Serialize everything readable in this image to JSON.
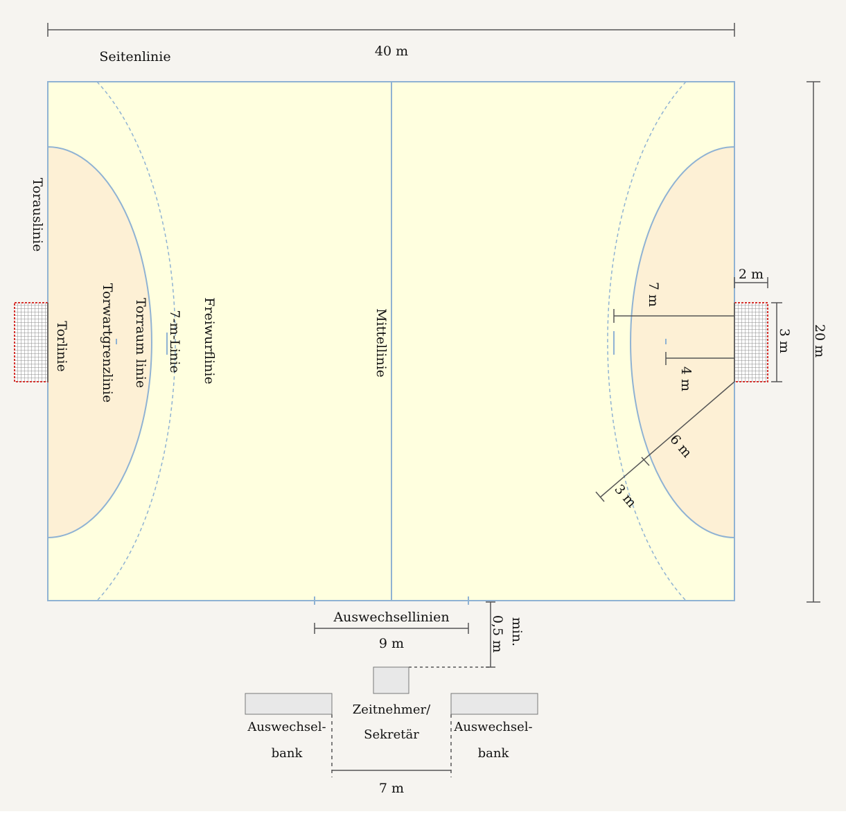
{
  "colors": {
    "background": "#f6f4f0",
    "court": "#ffffdf",
    "goal_area": "#fdf0d5",
    "court_line": "#8fb2d3",
    "dimension_line": "#555555",
    "goal_net": "#9a9a9a",
    "goal_post_red": "#d6322e",
    "bench_fill": "#e8e8e8"
  },
  "labels": {
    "width_40m": "40 m",
    "sideline": "Seitenlinie",
    "goal_outline": "Torauslinie",
    "goal_line": "Torlinie",
    "goalkeeper_limit": "Torwartgrenzlinie",
    "goal_area_line": "Torraum linie",
    "seven_m_line": "7-m-Linie",
    "free_throw_line": "Freiwurflinie",
    "center_line": "Mittellinie",
    "dim_7m": "7 m",
    "dim_4m": "4 m",
    "dim_6m": "6 m",
    "dim_3m": "3 m",
    "dim_2m": "2 m",
    "dim_goal_3m": "3 m",
    "height_20m": "20 m",
    "substitution_lines": "Auswechsellinien",
    "dim_9m": "9 m",
    "dim_min_05m_a": "0,5 m",
    "dim_min_05m_b": "min.",
    "timekeeper_line1": "Zeitnehmer/",
    "timekeeper_line2": "Sekretär",
    "bench_left_line1": "Auswechsel-",
    "bench_left_line2": "bank",
    "bench_right_line1": "Auswechsel-",
    "bench_right_line2": "bank",
    "dim_7m_bench": "7 m"
  }
}
